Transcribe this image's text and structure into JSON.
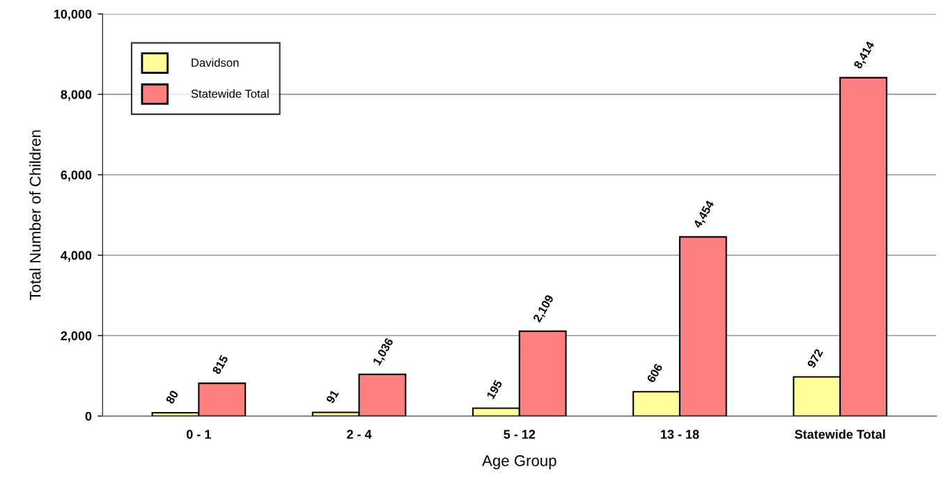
{
  "chart_data": {
    "type": "bar",
    "xlabel": "Age Group",
    "ylabel": "Total Number of Children",
    "categories": [
      "0 - 1",
      "2 - 4",
      "5 - 12",
      "13 - 18",
      "Statewide Total"
    ],
    "series": [
      {
        "name": "Davidson",
        "color": "#ffff99",
        "values": [
          80,
          91,
          195,
          606,
          972
        ],
        "value_labels": [
          "80",
          "91",
          "195",
          "606",
          "972"
        ]
      },
      {
        "name": "Statewide Total",
        "color": "#ff8080",
        "values": [
          815,
          1036,
          2109,
          4454,
          8414
        ],
        "value_labels": [
          "815",
          "1,036",
          "2,109",
          "4,454",
          "8,414"
        ]
      }
    ],
    "ylim": [
      0,
      10000
    ],
    "yticks": [
      0,
      {
        "value": 2000,
        "label": "2,000"
      },
      {
        "value": 4000,
        "label": "4,000"
      },
      {
        "value": 6000,
        "label": "6,000"
      },
      {
        "value": 8000,
        "label": "8,000"
      },
      {
        "value": 10000,
        "label": "10,000"
      }
    ],
    "grid": "y",
    "legend": "top left"
  }
}
